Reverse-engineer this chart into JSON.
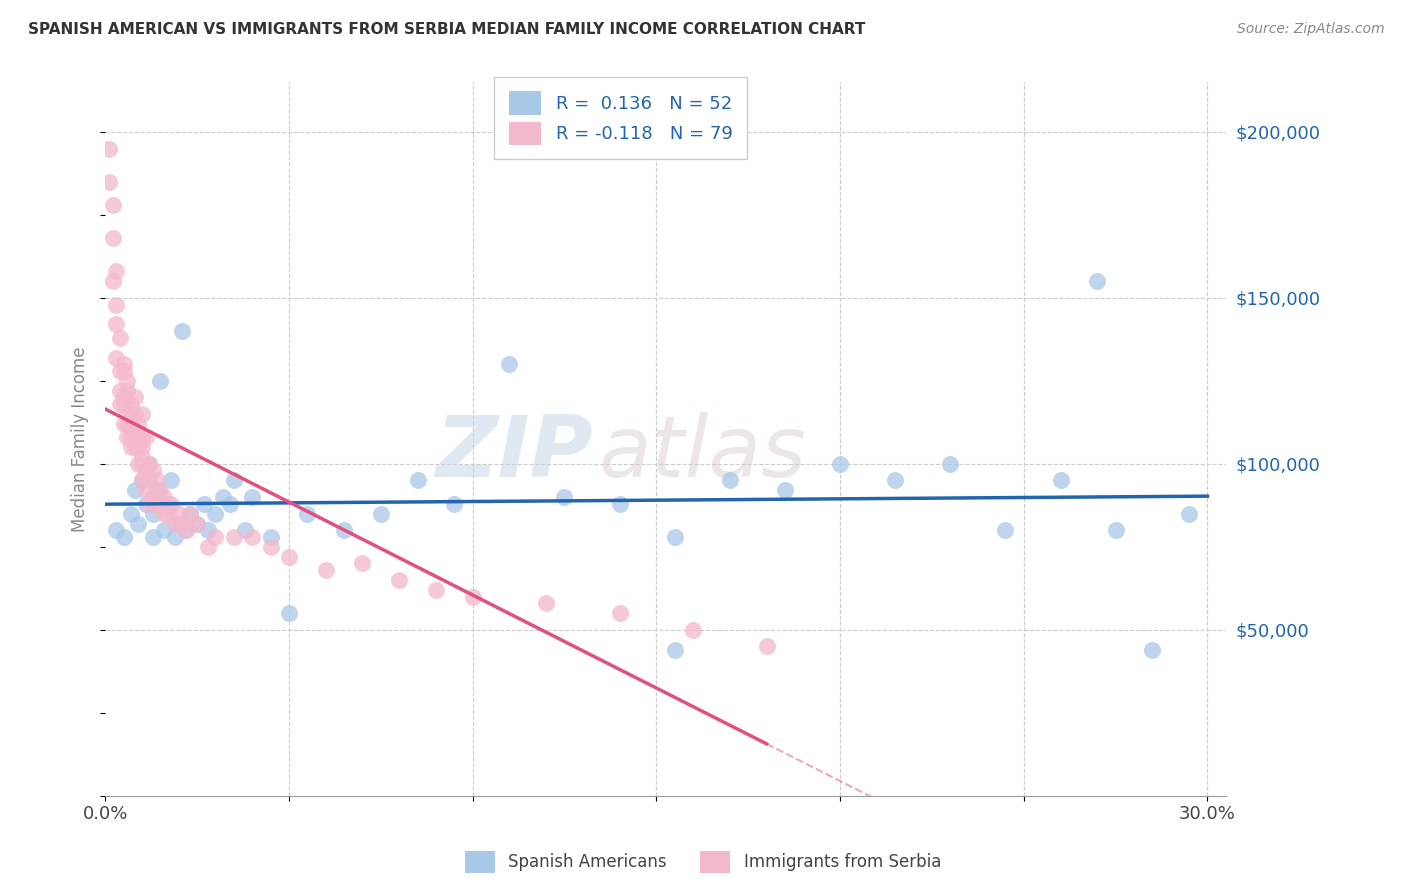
{
  "title": "SPANISH AMERICAN VS IMMIGRANTS FROM SERBIA MEDIAN FAMILY INCOME CORRELATION CHART",
  "source": "Source: ZipAtlas.com",
  "ylabel": "Median Family Income",
  "yticks": [
    0,
    50000,
    100000,
    150000,
    200000
  ],
  "ytick_labels": [
    "",
    "$50,000",
    "$100,000",
    "$150,000",
    "$200,000"
  ],
  "xtick_positions": [
    0.0,
    0.05,
    0.1,
    0.15,
    0.2,
    0.25,
    0.3
  ],
  "xtick_labels": [
    "0.0%",
    "",
    "",
    "",
    "",
    "",
    "30.0%"
  ],
  "xlim": [
    0.0,
    0.305
  ],
  "ylim": [
    0,
    215000
  ],
  "r_blue": "0.136",
  "n_blue": "52",
  "r_pink": "-0.118",
  "n_pink": "79",
  "color_blue_scatter": "#a8c8e8",
  "color_pink_scatter": "#f4b8cc",
  "color_blue_line": "#2166ac",
  "color_pink_line": "#e05080",
  "legend_label_blue": "Spanish Americans",
  "legend_label_pink": "Immigrants from Serbia",
  "watermark_zip": "ZIP",
  "watermark_atlas": "atlas",
  "blue_x": [
    0.003,
    0.005,
    0.007,
    0.008,
    0.009,
    0.01,
    0.011,
    0.012,
    0.013,
    0.013,
    0.014,
    0.015,
    0.016,
    0.017,
    0.018,
    0.019,
    0.02,
    0.021,
    0.022,
    0.023,
    0.025,
    0.027,
    0.028,
    0.03,
    0.032,
    0.034,
    0.035,
    0.038,
    0.04,
    0.045,
    0.05,
    0.055,
    0.065,
    0.075,
    0.085,
    0.095,
    0.11,
    0.125,
    0.14,
    0.155,
    0.17,
    0.185,
    0.2,
    0.215,
    0.23,
    0.245,
    0.26,
    0.275,
    0.155,
    0.27,
    0.285,
    0.295
  ],
  "blue_y": [
    80000,
    78000,
    85000,
    92000,
    82000,
    95000,
    88000,
    100000,
    85000,
    78000,
    92000,
    125000,
    80000,
    88000,
    95000,
    78000,
    82000,
    140000,
    80000,
    85000,
    82000,
    88000,
    80000,
    85000,
    90000,
    88000,
    95000,
    80000,
    90000,
    78000,
    55000,
    85000,
    80000,
    85000,
    95000,
    88000,
    130000,
    90000,
    88000,
    78000,
    95000,
    92000,
    100000,
    95000,
    100000,
    80000,
    95000,
    80000,
    44000,
    155000,
    44000,
    85000
  ],
  "pink_x": [
    0.001,
    0.001,
    0.002,
    0.002,
    0.002,
    0.003,
    0.003,
    0.003,
    0.003,
    0.004,
    0.004,
    0.004,
    0.004,
    0.005,
    0.005,
    0.005,
    0.005,
    0.005,
    0.006,
    0.006,
    0.006,
    0.006,
    0.006,
    0.007,
    0.007,
    0.007,
    0.007,
    0.007,
    0.008,
    0.008,
    0.008,
    0.008,
    0.009,
    0.009,
    0.009,
    0.009,
    0.01,
    0.01,
    0.01,
    0.01,
    0.01,
    0.01,
    0.011,
    0.011,
    0.011,
    0.012,
    0.012,
    0.012,
    0.013,
    0.013,
    0.014,
    0.014,
    0.015,
    0.015,
    0.016,
    0.016,
    0.017,
    0.018,
    0.019,
    0.02,
    0.021,
    0.022,
    0.023,
    0.025,
    0.028,
    0.03,
    0.035,
    0.04,
    0.045,
    0.05,
    0.06,
    0.07,
    0.08,
    0.09,
    0.1,
    0.12,
    0.14,
    0.16,
    0.18
  ],
  "pink_y": [
    185000,
    195000,
    168000,
    178000,
    155000,
    148000,
    158000,
    132000,
    142000,
    128000,
    122000,
    138000,
    118000,
    128000,
    120000,
    130000,
    112000,
    118000,
    125000,
    115000,
    108000,
    122000,
    112000,
    118000,
    108000,
    115000,
    105000,
    112000,
    115000,
    105000,
    120000,
    108000,
    105000,
    112000,
    100000,
    108000,
    115000,
    100000,
    108000,
    105000,
    95000,
    102000,
    108000,
    98000,
    92000,
    100000,
    88000,
    95000,
    98000,
    90000,
    88000,
    95000,
    88000,
    92000,
    85000,
    90000,
    85000,
    88000,
    82000,
    85000,
    82000,
    80000,
    85000,
    82000,
    75000,
    78000,
    78000,
    78000,
    75000,
    72000,
    68000,
    70000,
    65000,
    62000,
    60000,
    58000,
    55000,
    50000,
    45000
  ]
}
